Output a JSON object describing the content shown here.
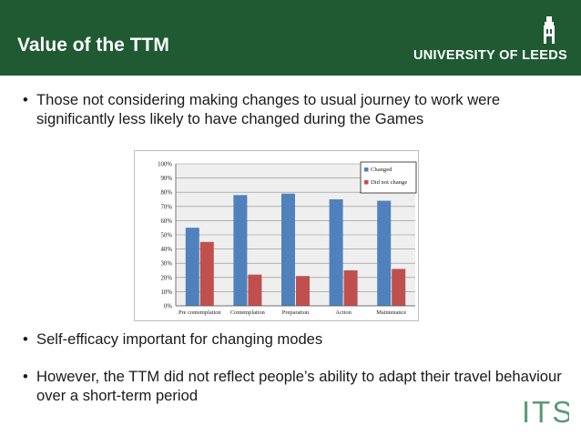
{
  "header": {
    "title": "Value of the TTM",
    "logo_text": "UNIVERSITY OF LEEDS",
    "background": "#1f5a32"
  },
  "bullets": [
    {
      "marker": "•",
      "text": "Those not considering making changes to usual journey to work were significantly less likely to have changed during the Games"
    },
    {
      "marker": "•",
      "text": "Self-efficacy important for changing modes"
    },
    {
      "marker": "•",
      "text": "However, the TTM did not reflect people’s ability to adapt their travel behaviour over a short-term period"
    }
  ],
  "footer": {
    "logo": "ITS",
    "logo_color": "#5a9a78"
  },
  "chart_data": {
    "type": "bar",
    "categories": [
      "Pre contemplation",
      "Contemplation",
      "Preparation",
      "Action",
      "Maintenance"
    ],
    "series": [
      {
        "name": "Changed",
        "values": [
          55,
          78,
          79,
          75,
          74
        ],
        "color": "#4f81bd"
      },
      {
        "name": "Did not change",
        "values": [
          45,
          22,
          21,
          25,
          26
        ],
        "color": "#c0504d"
      }
    ],
    "ylim": [
      0,
      100
    ],
    "yticks": [
      "0%",
      "10%",
      "20%",
      "30%",
      "40%",
      "50%",
      "60%",
      "70%",
      "80%",
      "90%",
      "100%"
    ],
    "grid": true,
    "legend": "top-right",
    "xlabel": "",
    "ylabel": ""
  }
}
